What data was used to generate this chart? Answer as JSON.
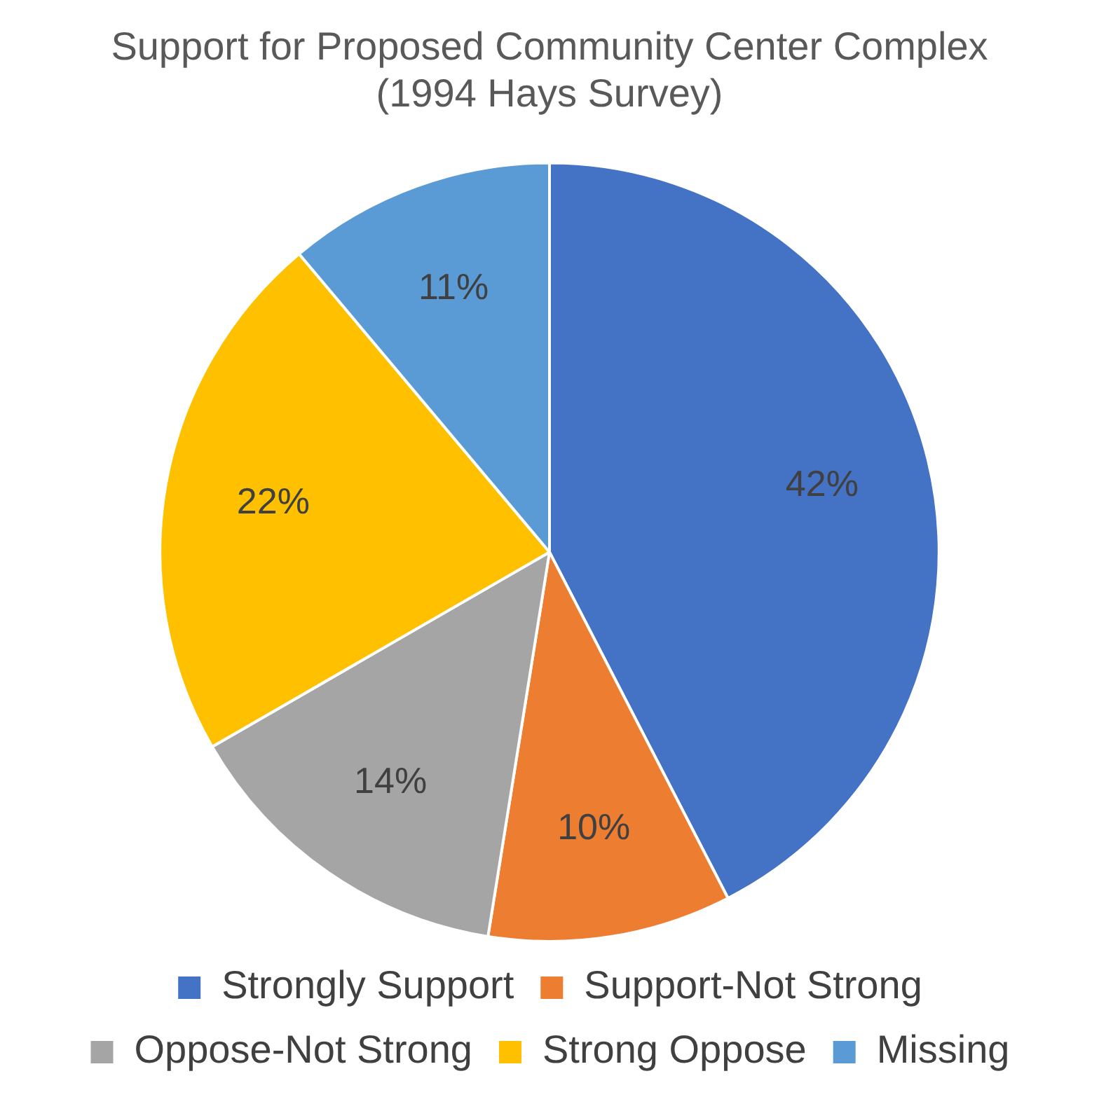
{
  "chart_data": {
    "type": "pie",
    "title": [
      "Support for Proposed Community Center Complex",
      "(1994 Hays Survey)"
    ],
    "categories": [
      "Strongly Support",
      "Support-Not Strong",
      "Oppose-Not Strong",
      "Strong Oppose",
      "Missing"
    ],
    "values": [
      42,
      10,
      14,
      22,
      11
    ],
    "colors": [
      "#4472c4",
      "#ed7d31",
      "#a5a5a5",
      "#ffc000",
      "#5b9bd5"
    ],
    "value_labels": [
      "42%",
      "10%",
      "14%",
      "22%",
      "11%"
    ],
    "legend": "bottom"
  }
}
